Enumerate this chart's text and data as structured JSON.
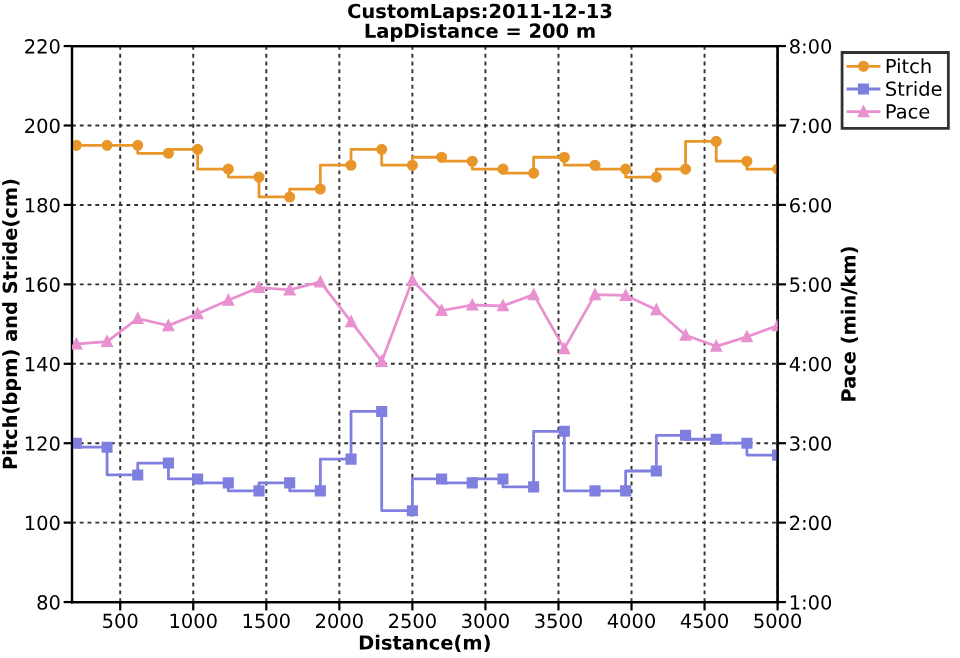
{
  "chart_data": {
    "type": "step",
    "title": "CustomLaps:2011-12-13",
    "subtitle": "LapDistance = 200 m",
    "xlabel": "Distance(m)",
    "ylabel": "Pitch(bpm) and Stride(cm)",
    "y2label": "Pace (min/km)",
    "x": [
      200,
      410,
      620,
      830,
      1030,
      1240,
      1450,
      1660,
      1870,
      2080,
      2290,
      2500,
      2700,
      2910,
      3120,
      3330,
      3540,
      3750,
      3960,
      4170,
      4370,
      4580,
      4790,
      5000
    ],
    "series": [
      {
        "name": "Pitch",
        "color": "#e8962a",
        "marker": "circle",
        "values": [
          195,
          195,
          195,
          193,
          194,
          189,
          187,
          182,
          184,
          190,
          194,
          190,
          192,
          191,
          189,
          188,
          192,
          190,
          189,
          187,
          189,
          196,
          191,
          189
        ]
      },
      {
        "name": "Stride",
        "color": "#7f7fe0",
        "marker": "square",
        "values": [
          120,
          119,
          112,
          115,
          111,
          110,
          108,
          110,
          108,
          116,
          128,
          103,
          111,
          110,
          111,
          109,
          123,
          108,
          108,
          113,
          122,
          121,
          120,
          117
        ]
      },
      {
        "name": "Pace",
        "type": "line",
        "axis": "y2",
        "color": "#e890d0",
        "marker": "triangle",
        "values": [
          4.25,
          4.28,
          4.57,
          4.48,
          4.63,
          4.8,
          4.96,
          4.93,
          5.03,
          4.53,
          4.03,
          5.05,
          4.67,
          4.74,
          4.73,
          4.87,
          4.19,
          4.87,
          4.86,
          4.68,
          4.36,
          4.22,
          4.34,
          4.48
        ]
      }
    ],
    "xlim": [
      170,
      5000
    ],
    "xticks": [
      500,
      1000,
      1500,
      2000,
      2500,
      3000,
      3500,
      4000,
      4500,
      5000
    ],
    "ylim": [
      80,
      220
    ],
    "yticks": [
      80,
      100,
      120,
      140,
      160,
      180,
      200,
      220
    ],
    "y2lim": [
      1,
      8
    ],
    "y2ticks": [
      {
        "value": 1,
        "label": "1:00"
      },
      {
        "value": 2,
        "label": "2:00"
      },
      {
        "value": 3,
        "label": "3:00"
      },
      {
        "value": 4,
        "label": "4:00"
      },
      {
        "value": 5,
        "label": "5:00"
      },
      {
        "value": 6,
        "label": "6:00"
      },
      {
        "value": 7,
        "label": "7:00"
      },
      {
        "value": 8,
        "label": "8:00"
      }
    ],
    "grid": true,
    "line_style": "solid",
    "legend": "top right"
  }
}
